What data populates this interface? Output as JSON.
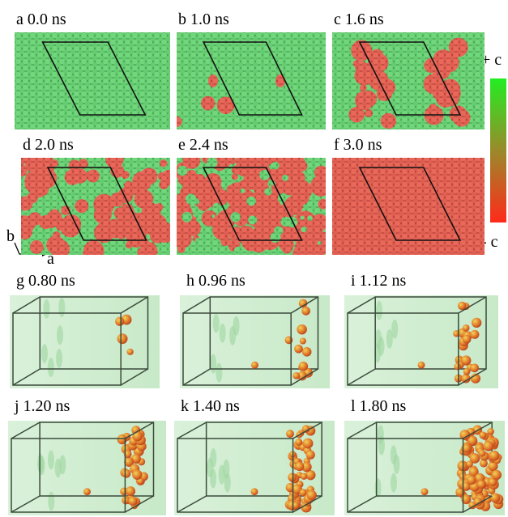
{
  "top_panels": [
    {
      "label": "a 0.0 ns"
    },
    {
      "label": "b 1.0 ns"
    },
    {
      "label": "c 1.6 ns"
    },
    {
      "label": "d 2.0 ns"
    },
    {
      "label": "e 2.4 ns"
    },
    {
      "label": "f 3.0 ns"
    }
  ],
  "colorbar": {
    "top_label": "+ c",
    "bottom_label": "- c"
  },
  "axes": {
    "b_label": "b",
    "a_label": "a"
  },
  "bottom_panels": [
    {
      "label": "g 0.80 ns"
    },
    {
      "label": "h 0.96 ns"
    },
    {
      "label": "i 1.12 ns"
    },
    {
      "label": "j 1.20 ns"
    },
    {
      "label": "k 1.40 ns"
    },
    {
      "label": "l 1.80 ns"
    }
  ]
}
